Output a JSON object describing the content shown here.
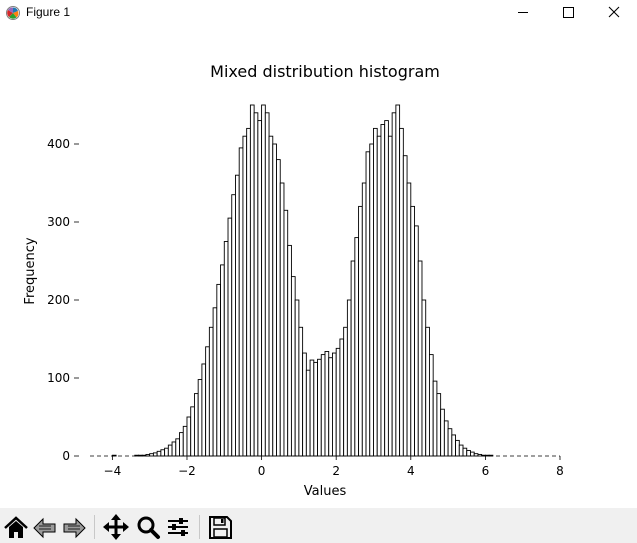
{
  "window": {
    "title": "Figure 1",
    "controls": [
      "minimize-icon",
      "maximize-icon",
      "close-icon"
    ]
  },
  "toolbar": {
    "buttons": [
      "home-icon",
      "back-arrow-icon",
      "forward-arrow-icon",
      "pan-icon",
      "zoom-icon",
      "configure-subplots-icon",
      "save-icon"
    ]
  },
  "chart_data": {
    "type": "bar",
    "title": "Mixed distribution histogram",
    "xlabel": "Values",
    "ylabel": "Frequency",
    "xlim": [
      -4.6,
      8.0
    ],
    "ylim": [
      0,
      470
    ],
    "xticks": [
      -4,
      -2,
      0,
      2,
      4,
      6,
      8
    ],
    "yticks": [
      0,
      100,
      200,
      300,
      400
    ],
    "grid": false,
    "bar_fill": "#ffffff",
    "bar_edge": "#000000",
    "bin_width": 0.1,
    "bin_start": -4.0,
    "values": [
      1,
      0,
      0,
      0,
      0,
      0,
      1,
      1,
      1,
      2,
      3,
      4,
      6,
      8,
      10,
      14,
      18,
      22,
      30,
      38,
      50,
      63,
      80,
      98,
      118,
      140,
      165,
      190,
      220,
      245,
      275,
      305,
      335,
      360,
      395,
      410,
      420,
      450,
      440,
      430,
      450,
      440,
      410,
      400,
      380,
      350,
      315,
      270,
      230,
      200,
      165,
      132,
      110,
      123,
      120,
      124,
      130,
      134,
      126,
      132,
      138,
      150,
      165,
      200,
      250,
      280,
      320,
      350,
      390,
      400,
      420,
      410,
      425,
      430,
      410,
      440,
      450,
      420,
      385,
      350,
      320,
      295,
      250,
      200,
      165,
      130,
      96,
      80,
      60,
      45,
      35,
      27,
      20,
      14,
      10,
      7,
      5,
      3,
      2,
      1,
      1,
      1
    ]
  }
}
